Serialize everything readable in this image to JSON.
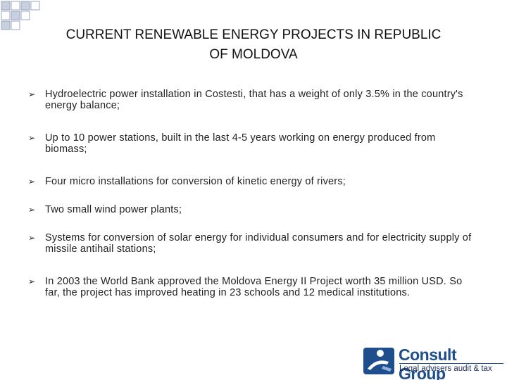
{
  "header": {
    "title": "CURRENT RENEWABLE ENERGY PROJECTS IN REPUBLIC OF MOLDOVA"
  },
  "bullets": [
    "Hydroelectric power installation in Costesti, that has a weight of only 3.5% in the country's energy balance;",
    "Up to 10 power stations, built in the last 4-5 years working on energy produced from biomass;",
    "Four micro installations for conversion of kinetic energy of rivers;",
    "Two small wind power plants;",
    "Systems for conversion of solar energy for individual consumers and for electricity supply of missile antihail stations;",
    "In 2003 the World Bank approved the Moldova Energy II Project worth 35 million USD. So far, the project has improved heating in 23 schools and 12 medical institutions."
  ],
  "logo": {
    "name": "Consult Group",
    "tagline": "Legal advisers audit & tax"
  }
}
